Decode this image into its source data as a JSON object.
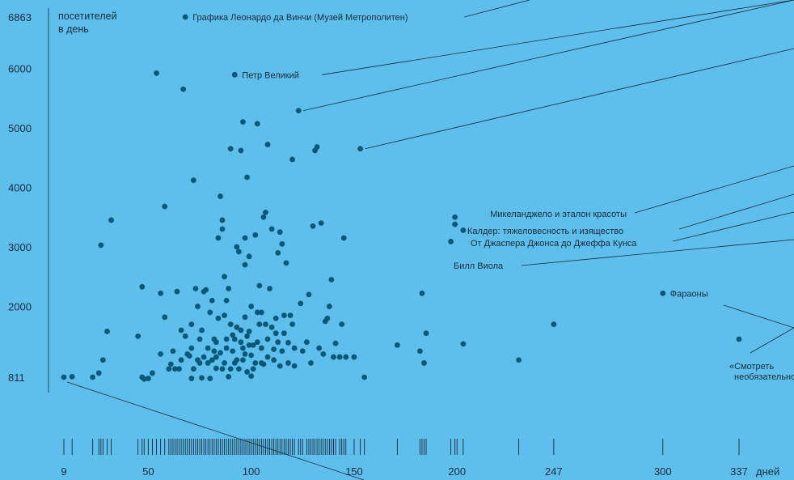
{
  "chart_data": {
    "type": "scatter",
    "ylabel_lines": [
      "посетителей",
      "в день"
    ],
    "xunit": "дней",
    "x_ticks": [
      9,
      50,
      100,
      150,
      200,
      247,
      300,
      337
    ],
    "y_ticks": [
      811,
      2000,
      3000,
      4000,
      5000,
      6000,
      6863
    ],
    "xlim": [
      9,
      337
    ],
    "ylim": [
      811,
      6863
    ],
    "color": "#0a5878",
    "background": "#5ebfec",
    "labeled_points": [
      {
        "label": "Графика Леонардо да Винчи (Музей Метрополитен)",
        "x": 68,
        "y": 6863,
        "label_side": "right"
      },
      {
        "label": "Петр Великий",
        "x": 92,
        "y": 5893,
        "label_side": "right"
      },
      {
        "label": "Микеланджело и эталон красоты",
        "x": 199,
        "y": 3500,
        "label_side": "left"
      },
      {
        "label": "Калдер: тяжеловесность и изящество",
        "x": 199,
        "y": 3380,
        "label_side": "right"
      },
      {
        "label": "От Джаспера Джонса до Джеффа Кунса",
        "x": 203,
        "y": 3280,
        "label_side": "right"
      },
      {
        "label": "Билл Виола",
        "x": 197,
        "y": 3090,
        "label_side": "below"
      },
      {
        "label": "Фараоны",
        "x": 300,
        "y": 2220,
        "label_side": "right"
      },
      {
        "label": "«Смотреть необязательно…",
        "x": 337,
        "y": 1450,
        "label_side": "below"
      }
    ],
    "points": [
      [
        9,
        811
      ],
      [
        13,
        820
      ],
      [
        23,
        811
      ],
      [
        26,
        880
      ],
      [
        28,
        1100
      ],
      [
        30,
        1580
      ],
      [
        27,
        3030
      ],
      [
        32,
        3450
      ],
      [
        45,
        1500
      ],
      [
        47,
        811
      ],
      [
        48,
        780
      ],
      [
        47,
        2330
      ],
      [
        50,
        790
      ],
      [
        52,
        880
      ],
      [
        54,
        5920
      ],
      [
        56,
        1200
      ],
      [
        56,
        2220
      ],
      [
        58,
        3680
      ],
      [
        58,
        1820
      ],
      [
        61,
        1030
      ],
      [
        63,
        950
      ],
      [
        64,
        2250
      ],
      [
        65,
        950
      ],
      [
        66,
        1100
      ],
      [
        67,
        5650
      ],
      [
        68,
        1500
      ],
      [
        70,
        1170
      ],
      [
        71,
        790
      ],
      [
        71,
        1300
      ],
      [
        73,
        2300
      ],
      [
        72,
        4120
      ],
      [
        71,
        1700
      ],
      [
        74,
        2000
      ],
      [
        75,
        1050
      ],
      [
        76,
        800
      ],
      [
        76,
        1600
      ],
      [
        78,
        2280
      ],
      [
        77,
        1150
      ],
      [
        79,
        1050
      ],
      [
        80,
        1900
      ],
      [
        80,
        790
      ],
      [
        82,
        1250
      ],
      [
        83,
        1400
      ],
      [
        83,
        960
      ],
      [
        85,
        3850
      ],
      [
        84,
        3150
      ],
      [
        86,
        3450
      ],
      [
        87,
        2500
      ],
      [
        86,
        3300
      ],
      [
        88,
        1300
      ],
      [
        88,
        2100
      ],
      [
        89,
        2300
      ],
      [
        90,
        1700
      ],
      [
        90,
        4650
      ],
      [
        91,
        1520
      ],
      [
        93,
        3000
      ],
      [
        94,
        2920
      ],
      [
        95,
        4620
      ],
      [
        96,
        5100
      ],
      [
        97,
        2700
      ],
      [
        97,
        3150
      ],
      [
        98,
        4170
      ],
      [
        99,
        2840
      ],
      [
        100,
        2000
      ],
      [
        101,
        1350
      ],
      [
        102,
        3200
      ],
      [
        103,
        5070
      ],
      [
        104,
        2350
      ],
      [
        105,
        1900
      ],
      [
        106,
        3500
      ],
      [
        107,
        3580
      ],
      [
        108,
        4720
      ],
      [
        109,
        2300
      ],
      [
        110,
        3300
      ],
      [
        112,
        1550
      ],
      [
        113,
        2900
      ],
      [
        114,
        3250
      ],
      [
        115,
        3050
      ],
      [
        116,
        1550
      ],
      [
        117,
        2730
      ],
      [
        118,
        1050
      ],
      [
        120,
        4470
      ],
      [
        121,
        1300
      ],
      [
        123,
        5290
      ],
      [
        124,
        2050
      ],
      [
        125,
        1250
      ],
      [
        127,
        1400
      ],
      [
        128,
        2200
      ],
      [
        129,
        1050
      ],
      [
        131,
        4620
      ],
      [
        132,
        4680
      ],
      [
        130,
        3350
      ],
      [
        133,
        1300
      ],
      [
        134,
        3400
      ],
      [
        135,
        1200
      ],
      [
        136,
        1750
      ],
      [
        137,
        1800
      ],
      [
        138,
        2000
      ],
      [
        139,
        2450
      ],
      [
        140,
        1150
      ],
      [
        141,
        1380
      ],
      [
        143,
        1150
      ],
      [
        144,
        1700
      ],
      [
        145,
        3150
      ],
      [
        146,
        1150
      ],
      [
        150,
        1150
      ],
      [
        153,
        4650
      ],
      [
        155,
        811
      ],
      [
        171,
        1350
      ],
      [
        182,
        1250
      ],
      [
        183,
        2220
      ],
      [
        184,
        1050
      ],
      [
        185,
        1550
      ],
      [
        203,
        1370
      ],
      [
        230,
        1100
      ],
      [
        247,
        1700
      ],
      [
        85,
        1220
      ],
      [
        87,
        1850
      ],
      [
        92,
        1450
      ],
      [
        95,
        1400
      ],
      [
        97,
        1820
      ],
      [
        99,
        1580
      ],
      [
        100,
        1180
      ],
      [
        102,
        1050
      ],
      [
        104,
        1700
      ],
      [
        106,
        1030
      ],
      [
        108,
        1150
      ],
      [
        111,
        1280
      ],
      [
        112,
        1800
      ],
      [
        114,
        1000
      ],
      [
        116,
        1850
      ],
      [
        118,
        1390
      ],
      [
        120,
        1700
      ],
      [
        121,
        1000
      ],
      [
        93,
        1100
      ],
      [
        94,
        950
      ],
      [
        96,
        1300
      ],
      [
        98,
        900
      ],
      [
        100,
        830
      ],
      [
        103,
        1400
      ],
      [
        105,
        1050
      ],
      [
        107,
        1700
      ],
      [
        110,
        1650
      ],
      [
        113,
        1400
      ],
      [
        115,
        1250
      ],
      [
        119,
        1850
      ],
      [
        81,
        1100
      ],
      [
        82,
        1450
      ],
      [
        84,
        1800
      ],
      [
        86,
        950
      ],
      [
        88,
        1450
      ],
      [
        89,
        820
      ],
      [
        91,
        1250
      ],
      [
        92,
        1050
      ],
      [
        95,
        1600
      ],
      [
        97,
        1200
      ],
      [
        99,
        1350
      ],
      [
        101,
        950
      ],
      [
        103,
        1900
      ],
      [
        105,
        1300
      ],
      [
        108,
        1450
      ],
      [
        111,
        1100
      ],
      [
        75,
        1450
      ],
      [
        77,
        2250
      ],
      [
        79,
        1300
      ],
      [
        81,
        2100
      ],
      [
        83,
        1150
      ],
      [
        87,
        1050
      ],
      [
        90,
        950
      ],
      [
        93,
        1650
      ],
      [
        96,
        1100
      ],
      [
        98,
        1500
      ],
      [
        60,
        950
      ],
      [
        62,
        1250
      ],
      [
        66,
        1600
      ],
      [
        69,
        1200
      ],
      [
        72,
        950
      ],
      [
        74,
        1100
      ]
    ]
  }
}
